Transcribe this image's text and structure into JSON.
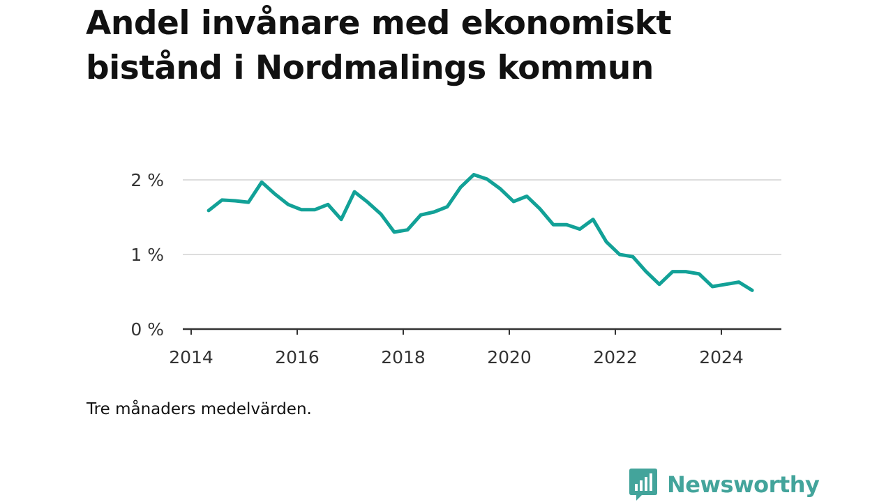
{
  "title": "Andel invånare med ekonomiskt bistånd i Nordmalings kommun",
  "caption": "Tre månaders medelvärden.",
  "brand": {
    "name": "Newsworthy",
    "color": "#43a49b",
    "icon": "chat-bar-chart-icon"
  },
  "chart_data": {
    "type": "line",
    "title": "",
    "xlabel": "",
    "ylabel": "",
    "xlim": [
      2014.0,
      2025.2
    ],
    "ylim": [
      0,
      2.1
    ],
    "y_ticks": [
      {
        "value": 0,
        "label": "0 %"
      },
      {
        "value": 1,
        "label": "1 %"
      },
      {
        "value": 2,
        "label": "2 %"
      }
    ],
    "x_ticks": [
      {
        "value": 2014,
        "label": "2014"
      },
      {
        "value": 2016,
        "label": "2016"
      },
      {
        "value": 2018,
        "label": "2018"
      },
      {
        "value": 2020,
        "label": "2020"
      },
      {
        "value": 2022,
        "label": "2022"
      },
      {
        "value": 2024,
        "label": "2024"
      }
    ],
    "grid": true,
    "line_color": "#12a197",
    "series": [
      {
        "x": [
          2014.33,
          2014.58,
          2014.83,
          2015.08,
          2015.33,
          2015.58,
          2015.83,
          2016.08,
          2016.33,
          2016.58,
          2016.83,
          2017.08,
          2017.33,
          2017.58,
          2017.83,
          2018.08,
          2018.33,
          2018.58,
          2018.83,
          2019.08,
          2019.33,
          2019.58,
          2019.83,
          2020.08,
          2020.33,
          2020.58,
          2020.83,
          2021.08,
          2021.33,
          2021.58,
          2021.83,
          2022.08,
          2022.33,
          2022.58,
          2022.83,
          2023.08,
          2023.33,
          2023.58,
          2023.83,
          2024.08,
          2024.33,
          2024.58
        ],
        "values": [
          1.59,
          1.73,
          1.72,
          1.7,
          1.97,
          1.81,
          1.67,
          1.6,
          1.6,
          1.67,
          1.47,
          1.84,
          1.7,
          1.54,
          1.3,
          1.33,
          1.53,
          1.57,
          1.64,
          1.9,
          2.07,
          2.01,
          1.88,
          1.71,
          1.78,
          1.61,
          1.4,
          1.4,
          1.34,
          1.47,
          1.17,
          1.0,
          0.97,
          0.77,
          0.6,
          0.77,
          0.77,
          0.74,
          0.57,
          0.6,
          0.63,
          0.52
        ]
      }
    ]
  }
}
